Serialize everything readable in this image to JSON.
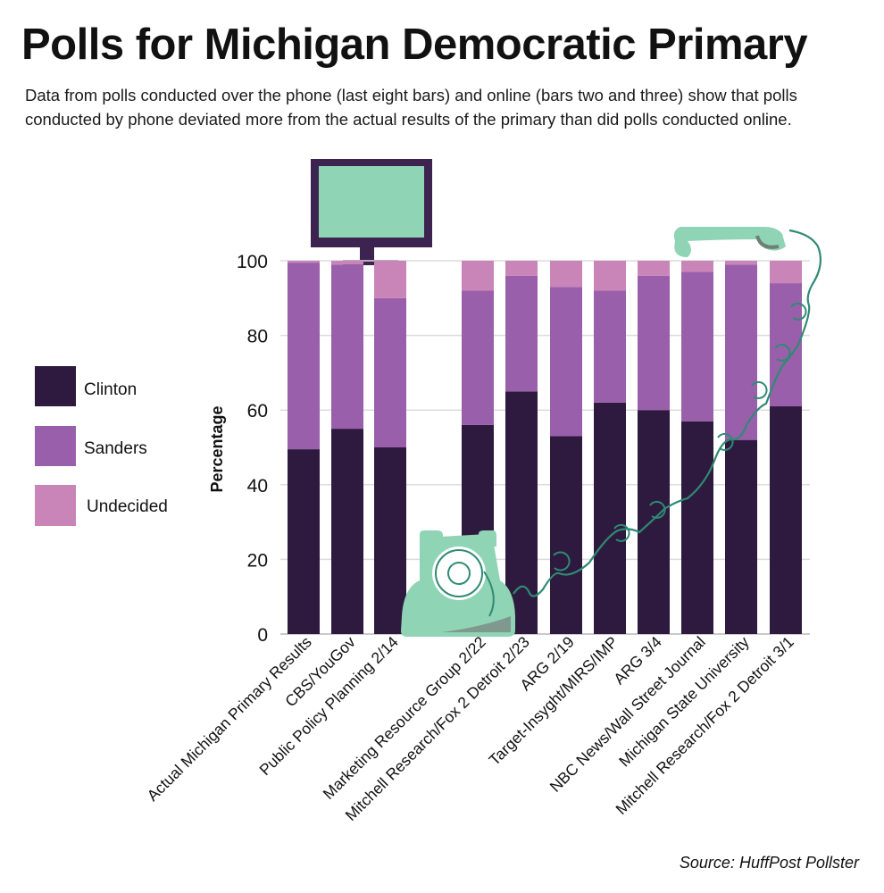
{
  "header": {
    "title": "Polls for Michigan Democratic Primary",
    "subtitle": "Data from polls conducted over the phone (last eight bars) and online (bars two and three) show that polls conducted by phone deviated more from the actual results of the primary than did polls conducted online."
  },
  "source": "Source: HuffPost Pollster",
  "colors": {
    "clinton": "#2e1a3e",
    "sanders": "#9a5faa",
    "undecided": "#c985b8",
    "accent": "#8fd4b4"
  },
  "icons": [
    "computer-monitor-icon",
    "rotary-phone-icon",
    "phone-handset-icon"
  ],
  "chart_data": {
    "type": "bar",
    "stacked": true,
    "title": "Polls for Michigan Democratic Primary",
    "xlabel": "",
    "ylabel": "Percentage",
    "ylim": [
      0,
      100
    ],
    "yticks": [
      0,
      20,
      40,
      60,
      80,
      100
    ],
    "legend_position": "left",
    "categories": [
      "Actual Michigan Primary Results",
      "CBS/YouGov",
      "Public Policy Planning 2/14",
      "Marketing Resource Group 2/22",
      "Mitchell Research/Fox 2 Detroit 2/23",
      "ARG 2/19",
      "Target-Insyght/MIRS/IMP",
      "ARG 3/4",
      "NBC News/Wall Street Journal",
      "Michigan State University",
      "Mitchell Research/Fox 2 Detroit 3/1"
    ],
    "series": [
      {
        "name": "Clinton",
        "values": [
          49.5,
          55,
          50,
          56,
          65,
          53,
          62,
          60,
          57,
          52,
          61
        ]
      },
      {
        "name": "Sanders",
        "values": [
          50,
          44,
          40,
          36,
          31,
          40,
          30,
          36,
          40,
          47,
          33
        ]
      },
      {
        "name": "Undecided",
        "values": [
          0.5,
          1,
          10,
          8,
          4,
          7,
          8,
          4,
          3,
          1,
          6
        ]
      }
    ]
  }
}
